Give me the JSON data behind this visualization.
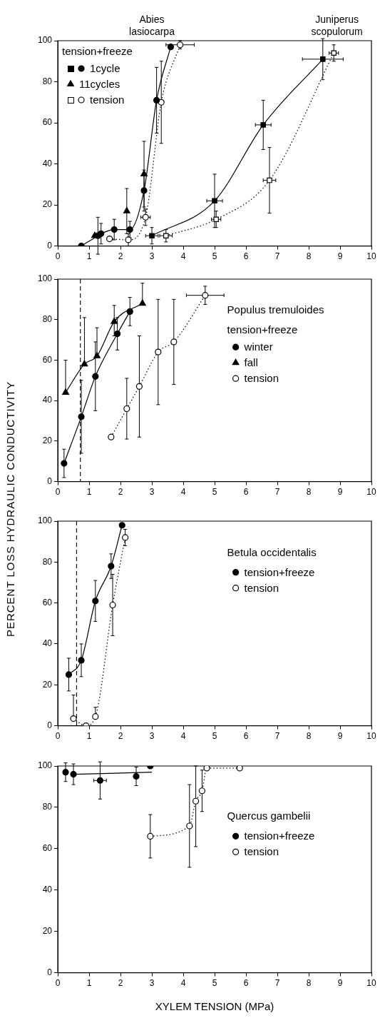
{
  "chart_data": [
    {
      "type": "line",
      "legend_title": "tension+freeze",
      "legend": "top left",
      "grid": false,
      "xlim": [
        0,
        10
      ],
      "xticks": [
        0,
        1,
        2,
        3,
        4,
        5,
        6,
        7,
        8,
        9,
        10
      ],
      "ylim": [
        0,
        100
      ],
      "yticks": [
        0,
        20,
        40,
        60,
        80,
        100
      ],
      "annotations": [
        "Abies lasiocarpa",
        "Juniperus scopulorum"
      ],
      "series": [
        {
          "name": "1cycle",
          "color": "#000000",
          "marker": "circle",
          "line_style": "solid",
          "x": [
            0.75,
            1.28,
            1.38,
            1.8,
            2.3,
            2.75,
            3.15,
            3.6
          ],
          "values": [
            0,
            5,
            6,
            8,
            8,
            27,
            71,
            97
          ],
          "errors": [
            null,
            9,
            5,
            5,
            4,
            10,
            16,
            null
          ]
        },
        {
          "name": "11cycles",
          "type": "scatter",
          "color": "#000000",
          "marker": "triangle",
          "x": [
            1.18,
            2.2,
            2.75
          ],
          "values": [
            5,
            17,
            35
          ],
          "errors": [
            null,
            11,
            16
          ]
        },
        {
          "name": "tension",
          "color": "#000000",
          "marker": "circle",
          "line_style": "dotted",
          "x": [
            1.65,
            2.25,
            2.8,
            3.3,
            3.9
          ],
          "values": [
            3.5,
            3,
            14,
            70,
            98
          ],
          "errors": [
            null,
            3,
            4,
            20,
            2
          ],
          "xerrors": [
            null,
            null,
            0.15,
            null,
            0.45
          ]
        },
        {
          "color": "#000000",
          "marker": "square",
          "line_style": "solid",
          "x": [
            3.0,
            5.0,
            6.55,
            8.45
          ],
          "values": [
            5,
            22,
            59,
            91
          ],
          "errors": [
            4,
            13,
            12,
            10
          ],
          "xerrors": [
            0.2,
            0.25,
            0.25,
            0.65
          ]
        },
        {
          "color": "#000000",
          "marker": "square",
          "line_style": "dotted",
          "x": [
            3.45,
            5.05,
            6.75,
            8.8
          ],
          "values": [
            5,
            13,
            32,
            94
          ],
          "errors": [
            3,
            4,
            16,
            4
          ],
          "xerrors": [
            0.2,
            0.15,
            0.2,
            0.15
          ]
        }
      ]
    },
    {
      "type": "line",
      "title": "Populus tremuloides",
      "legend_title": "tension+freeze",
      "legend": "top right",
      "grid": false,
      "xlim": [
        0,
        10
      ],
      "xticks": [
        0,
        1,
        2,
        3,
        4,
        5,
        6,
        7,
        8,
        9,
        10
      ],
      "ylim": [
        0,
        100
      ],
      "yticks": [
        0,
        20,
        40,
        60,
        80,
        100
      ],
      "ref_lines": [
        {
          "axis": "x",
          "value": 0.72,
          "line_style": "dashed"
        }
      ],
      "series": [
        {
          "name": "winter",
          "color": "#000000",
          "marker": "circle",
          "line_style": "solid",
          "x": [
            0.2,
            0.75,
            1.2,
            1.9,
            2.3
          ],
          "values": [
            9,
            32,
            52,
            73,
            84
          ],
          "errors": [
            7,
            18,
            17,
            8,
            7
          ]
        },
        {
          "name": "fall",
          "color": "#000000",
          "marker": "triangle",
          "line_style": "solid",
          "x": [
            0.25,
            0.85,
            1.25,
            1.8,
            2.7
          ],
          "values": [
            44,
            58,
            62,
            79,
            88
          ],
          "errors": [
            [
              44,
              60
            ],
            [
              58,
              81
            ],
            [
              62,
              76
            ],
            [
              72,
              87
            ],
            [
              88,
              98
            ]
          ]
        },
        {
          "name": "tension",
          "color": "#000000",
          "marker": "circle",
          "line_style": "dotted",
          "x": [
            1.7,
            2.2,
            2.6,
            3.2,
            3.7,
            4.7
          ],
          "values": [
            22,
            36,
            47,
            64,
            69,
            92
          ],
          "errors": [
            null,
            15,
            25,
            26,
            21,
            4.5
          ],
          "xerrors": [
            null,
            null,
            null,
            null,
            null,
            0.6
          ]
        }
      ]
    },
    {
      "type": "line",
      "title": "Betula occidentalis",
      "ylabel": "PERCENT LOSS HYDRAULIC CONDUCTIVITY",
      "legend": "top right",
      "grid": false,
      "xlim": [
        0,
        10
      ],
      "xticks": [
        0,
        1,
        2,
        3,
        4,
        5,
        6,
        7,
        8,
        9,
        10
      ],
      "ylim": [
        0,
        100
      ],
      "yticks": [
        0,
        20,
        40,
        60,
        80,
        100
      ],
      "ref_lines": [
        {
          "axis": "x",
          "value": 0.6,
          "line_style": "dashed"
        }
      ],
      "series": [
        {
          "name": "tension+freeze",
          "color": "#000000",
          "marker": "circle",
          "line_style": "solid",
          "x": [
            0.35,
            0.75,
            1.2,
            1.7,
            2.05
          ],
          "values": [
            25,
            32,
            61,
            78,
            98
          ],
          "errors": [
            8,
            8,
            10,
            6,
            null
          ]
        },
        {
          "name": "tension",
          "color": "#000000",
          "marker": "circle",
          "line_style": "dotted",
          "x": [
            0.5,
            0.9,
            1.2,
            1.75,
            2.15
          ],
          "values": [
            3.5,
            0,
            4.5,
            59,
            92
          ],
          "errors": [
            [
              3.5,
              15
            ],
            null,
            [
              4.5,
              9
            ],
            15,
            4
          ]
        }
      ]
    },
    {
      "type": "line",
      "title": "Quercus gambelii",
      "xlabel": "XYLEM TENSION (MPa)",
      "legend": "right",
      "grid": false,
      "xlim": [
        0,
        10
      ],
      "xticks": [
        0,
        1,
        2,
        3,
        4,
        5,
        6,
        7,
        8,
        9,
        10
      ],
      "ylim": [
        0,
        100
      ],
      "yticks": [
        0,
        20,
        40,
        60,
        80,
        100
      ],
      "series": [
        {
          "name": "tension+freeze",
          "type": "scatter",
          "color": "#000000",
          "marker": "circle",
          "x": [
            0.25,
            0.5,
            1.35,
            2.5,
            2.95
          ],
          "values": [
            97,
            96,
            93,
            95,
            100
          ],
          "errors": [
            4.5,
            5,
            9,
            4.5,
            null
          ],
          "xerrors": [
            null,
            null,
            0.2,
            null,
            null
          ]
        },
        {
          "color": "#000000",
          "line_style": "solid",
          "x": [
            0.5,
            3
          ],
          "values": [
            96,
            97
          ]
        },
        {
          "name": "tension",
          "color": "#000000",
          "marker": "circle",
          "line_style": "dotted",
          "x": [
            2.95,
            4.2,
            4.4,
            4.6,
            4.75,
            5.8
          ],
          "values": [
            66,
            71,
            83,
            88,
            99,
            99
          ],
          "errors": [
            10.5,
            20,
            [
              61,
              100
            ],
            10,
            null,
            null
          ]
        }
      ]
    }
  ]
}
